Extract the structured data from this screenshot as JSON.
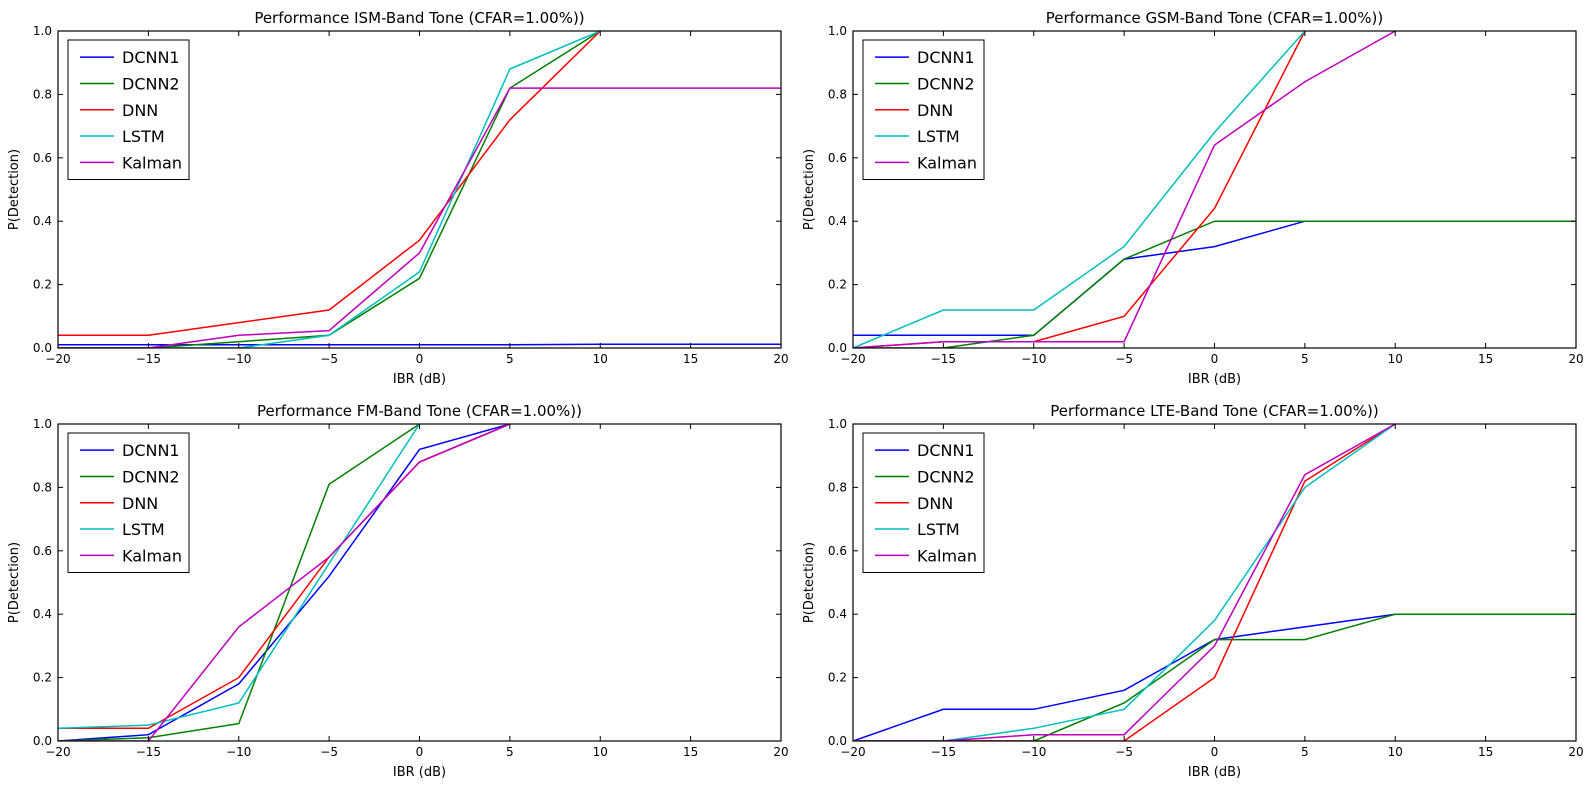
{
  "colors": {
    "DCNN1": "#0000ff",
    "DCNN2": "#008000",
    "DNN": "#ff0000",
    "LSTM": "#00bfbf",
    "Kalman": "#bf00bf"
  },
  "chart_data": [
    {
      "type": "line",
      "title": "Performance ISM-Band Tone (CFAR=1.00%))",
      "xlabel": "IBR (dB)",
      "ylabel": "P(Detection)",
      "xlim": [
        -20,
        20
      ],
      "ylim": [
        0,
        1
      ],
      "xticks": [
        "−20",
        "−15",
        "−10",
        "−5",
        "0",
        "5",
        "10",
        "15",
        "20"
      ],
      "yticks": [
        "0.0",
        "0.2",
        "0.4",
        "0.6",
        "0.8",
        "1.0"
      ],
      "legend": "top-left",
      "grid": false,
      "series": [
        {
          "name": "DCNN1",
          "x": [
            -20,
            -15,
            -10,
            -5,
            0,
            5,
            10,
            15,
            20
          ],
          "values": [
            0.01,
            0.01,
            0.01,
            0.01,
            0.01,
            0.01,
            0.012,
            0.012,
            0.012
          ]
        },
        {
          "name": "DCNN2",
          "x": [
            -20,
            -15,
            -10,
            -5,
            0,
            5,
            10
          ],
          "values": [
            0.0,
            0.0,
            0.02,
            0.04,
            0.22,
            0.82,
            1.0
          ]
        },
        {
          "name": "DNN",
          "x": [
            -20,
            -15,
            -10,
            -5,
            0,
            5,
            10
          ],
          "values": [
            0.04,
            0.04,
            0.08,
            0.12,
            0.34,
            0.72,
            1.0
          ]
        },
        {
          "name": "LSTM",
          "x": [
            -20,
            -15,
            -10,
            -5,
            0,
            5,
            10
          ],
          "values": [
            0.0,
            0.0,
            0.0,
            0.04,
            0.24,
            0.88,
            1.0
          ]
        },
        {
          "name": "Kalman",
          "x": [
            -20,
            -15,
            -10,
            -5,
            0,
            5,
            10,
            15,
            20
          ],
          "values": [
            0.0,
            0.0,
            0.04,
            0.055,
            0.3,
            0.82,
            0.82,
            0.82,
            0.82
          ]
        }
      ]
    },
    {
      "type": "line",
      "title": "Performance GSM-Band Tone (CFAR=1.00%))",
      "xlabel": "IBR (dB)",
      "ylabel": "P(Detection)",
      "xlim": [
        -20,
        20
      ],
      "ylim": [
        0,
        1
      ],
      "xticks": [
        "−20",
        "−15",
        "−10",
        "−5",
        "0",
        "5",
        "10",
        "15",
        "20"
      ],
      "yticks": [
        "0.0",
        "0.2",
        "0.4",
        "0.6",
        "0.8",
        "1.0"
      ],
      "legend": "top-left",
      "grid": false,
      "series": [
        {
          "name": "DCNN1",
          "x": [
            -20,
            -15,
            -10,
            -5,
            0,
            5,
            10,
            15,
            20
          ],
          "values": [
            0.04,
            0.04,
            0.04,
            0.28,
            0.32,
            0.4,
            0.4,
            0.4,
            0.4
          ]
        },
        {
          "name": "DCNN2",
          "x": [
            -20,
            -15,
            -10,
            -5,
            0,
            5,
            10,
            15,
            20
          ],
          "values": [
            0.0,
            0.0,
            0.04,
            0.28,
            0.4,
            0.4,
            0.4,
            0.4,
            0.4
          ]
        },
        {
          "name": "DNN",
          "x": [
            -20,
            -15,
            -10,
            -5,
            0,
            5
          ],
          "values": [
            0.0,
            0.02,
            0.02,
            0.1,
            0.44,
            1.0
          ]
        },
        {
          "name": "LSTM",
          "x": [
            -20,
            -15,
            -10,
            -5,
            0,
            5
          ],
          "values": [
            0.0,
            0.12,
            0.12,
            0.32,
            0.68,
            1.0
          ]
        },
        {
          "name": "Kalman",
          "x": [
            -20,
            -15,
            -10,
            -5,
            0,
            5,
            10
          ],
          "values": [
            0.0,
            0.02,
            0.02,
            0.02,
            0.64,
            0.84,
            1.0
          ]
        }
      ]
    },
    {
      "type": "line",
      "title": "Performance FM-Band Tone (CFAR=1.00%))",
      "xlabel": "IBR (dB)",
      "ylabel": "P(Detection)",
      "xlim": [
        -20,
        20
      ],
      "ylim": [
        0,
        1
      ],
      "xticks": [
        "−20",
        "−15",
        "−10",
        "−5",
        "0",
        "5",
        "10",
        "15",
        "20"
      ],
      "yticks": [
        "0.0",
        "0.2",
        "0.4",
        "0.6",
        "0.8",
        "1.0"
      ],
      "legend": "top-left",
      "grid": false,
      "series": [
        {
          "name": "DCNN1",
          "x": [
            -20,
            -15,
            -10,
            -5,
            0,
            5
          ],
          "values": [
            0.0,
            0.02,
            0.18,
            0.52,
            0.92,
            1.0
          ]
        },
        {
          "name": "DCNN2",
          "x": [
            -20,
            -15,
            -10,
            -5,
            0
          ],
          "values": [
            0.0,
            0.01,
            0.055,
            0.81,
            1.0
          ]
        },
        {
          "name": "DNN",
          "x": [
            -20,
            -15,
            -10,
            -5,
            0,
            5
          ],
          "values": [
            0.04,
            0.04,
            0.2,
            0.58,
            0.88,
            1.0
          ]
        },
        {
          "name": "LSTM",
          "x": [
            -20,
            -15,
            -10,
            -5,
            0
          ],
          "values": [
            0.04,
            0.05,
            0.12,
            0.56,
            1.0
          ]
        },
        {
          "name": "Kalman",
          "x": [
            -20,
            -15,
            -10,
            -5,
            0,
            5
          ],
          "values": [
            0.0,
            0.0,
            0.36,
            0.58,
            0.88,
            1.0
          ]
        }
      ]
    },
    {
      "type": "line",
      "title": "Performance LTE-Band Tone (CFAR=1.00%))",
      "xlabel": "IBR (dB)",
      "ylabel": "P(Detection)",
      "xlim": [
        -20,
        20
      ],
      "ylim": [
        0,
        1
      ],
      "xticks": [
        "−20",
        "−15",
        "−10",
        "−5",
        "0",
        "5",
        "10",
        "15",
        "20"
      ],
      "yticks": [
        "0.0",
        "0.2",
        "0.4",
        "0.6",
        "0.8",
        "1.0"
      ],
      "legend": "top-left",
      "grid": false,
      "series": [
        {
          "name": "DCNN1",
          "x": [
            -20,
            -15,
            -10,
            -5,
            0,
            5,
            10,
            15,
            20
          ],
          "values": [
            0.0,
            0.1,
            0.1,
            0.16,
            0.32,
            0.36,
            0.4,
            0.4,
            0.4
          ]
        },
        {
          "name": "DCNN2",
          "x": [
            -20,
            -15,
            -10,
            -5,
            0,
            5,
            10,
            15,
            20
          ],
          "values": [
            0.0,
            0.0,
            0.0,
            0.12,
            0.32,
            0.32,
            0.4,
            0.4,
            0.4
          ]
        },
        {
          "name": "DNN",
          "x": [
            -20,
            -15,
            -10,
            -5,
            0,
            5,
            10
          ],
          "values": [
            0.0,
            0.0,
            0.0,
            0.0,
            0.2,
            0.82,
            1.0
          ]
        },
        {
          "name": "LSTM",
          "x": [
            -20,
            -15,
            -10,
            -5,
            0,
            5,
            10
          ],
          "values": [
            0.0,
            0.0,
            0.04,
            0.1,
            0.38,
            0.8,
            1.0
          ]
        },
        {
          "name": "Kalman",
          "x": [
            -20,
            -15,
            -10,
            -5,
            0,
            5,
            10
          ],
          "values": [
            0.0,
            0.0,
            0.02,
            0.02,
            0.3,
            0.84,
            1.0
          ]
        }
      ]
    }
  ]
}
